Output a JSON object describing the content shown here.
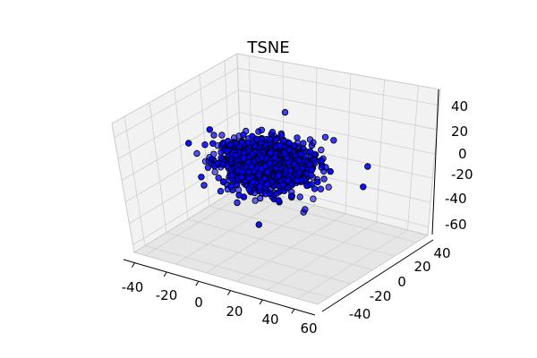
{
  "chart_data": {
    "type": "scatter",
    "projection": "3d",
    "title": "TSNE",
    "xlabel": "",
    "ylabel": "",
    "zlabel": "",
    "xlim": [
      -50,
      65
    ],
    "ylim": [
      -55,
      50
    ],
    "zlim": [
      -65,
      50
    ],
    "x_ticks": [
      "-40",
      "-20",
      "0",
      "20",
      "40",
      "60"
    ],
    "y_ticks": [
      "-40",
      "-20",
      "0",
      "20",
      "40"
    ],
    "z_ticks": [
      "-60",
      "-40",
      "-20",
      "0",
      "20",
      "40"
    ],
    "grid": true,
    "marker_color": "#0000ff",
    "marker_edge_color": "#000000",
    "point_count_estimate": 1500,
    "outliers": [
      [
        -35,
        25,
        10
      ],
      [
        -40,
        -10,
        -5
      ],
      [
        55,
        30,
        5
      ],
      [
        60,
        15,
        -10
      ],
      [
        -10,
        40,
        40
      ],
      [
        15,
        -40,
        -45
      ],
      [
        30,
        20,
        35
      ],
      [
        -30,
        -30,
        -20
      ],
      [
        40,
        -25,
        -25
      ],
      [
        -20,
        35,
        -35
      ],
      [
        25,
        40,
        20
      ],
      [
        -45,
        10,
        -15
      ]
    ]
  },
  "colors": {
    "pane": "#f2f2f2",
    "pane_dark": "#e6e6e6",
    "grid": "#d0d0d0",
    "axis": "#000000"
  }
}
